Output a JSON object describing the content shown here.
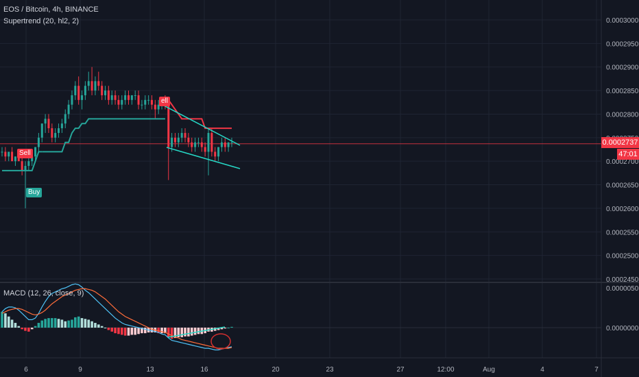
{
  "legend": {
    "symbol": "EOS / Bitcoin, 4h, BINANCE",
    "supertrend": "Supertrend (20, hl2, 2)",
    "macd": "MACD (12, 26, close, 9)"
  },
  "price_axis": {
    "ticks": [
      "0.0003000",
      "0.0002950",
      "0.0002900",
      "0.0002850",
      "0.0002800",
      "0.0002750",
      "0.0002700",
      "0.0002650",
      "0.0002600",
      "0.0002550",
      "0.0002500",
      "0.0002450"
    ],
    "current_price": "0.0002737",
    "countdown": "47:01"
  },
  "macd_axis": {
    "ticks": [
      "0.0000050",
      "0.0000000"
    ]
  },
  "time_axis": {
    "ticks": [
      "6",
      "9",
      "13",
      "16",
      "20",
      "23",
      "27",
      "12:00",
      "Aug",
      "4",
      "7"
    ]
  },
  "signals": {
    "sell_1": "Sell",
    "buy_1": "Buy",
    "sell_2": "ell"
  },
  "colors": {
    "background": "#131722",
    "up": "#26a69a",
    "down": "#f23645",
    "macd_line": "#4fc3f7",
    "signal_line": "#ff6d3a",
    "trendline": "#26d9c7"
  },
  "chart_data": {
    "type": "candlestick",
    "symbol": "EOS / Bitcoin",
    "interval": "4h",
    "exchange": "BINANCE",
    "y_range": [
      0.000244,
      0.000303
    ],
    "last_price": 0.0002737,
    "candles": [
      [
        0.000272,
        0.000273,
        0.000271,
        0.000272
      ],
      [
        0.000272,
        0.000273,
        0.00027,
        0.000271
      ],
      [
        0.000271,
        0.000272,
        0.00027,
        0.000272
      ],
      [
        0.000272,
        0.000273,
        0.00027,
        0.00027
      ],
      [
        0.00027,
        0.000271,
        0.000269,
        0.000271
      ],
      [
        0.000271,
        0.000272,
        0.00027,
        0.00027
      ],
      [
        0.00027,
        0.000271,
        0.000267,
        0.000268
      ],
      [
        0.000268,
        0.00027,
        0.00026,
        0.000269
      ],
      [
        0.000269,
        0.000271,
        0.000268,
        0.00027
      ],
      [
        0.00027,
        0.000272,
        0.000269,
        0.000271
      ],
      [
        0.000271,
        0.000273,
        0.00027,
        0.000273
      ],
      [
        0.000273,
        0.000276,
        0.000272,
        0.000275
      ],
      [
        0.000275,
        0.000278,
        0.000274,
        0.000278
      ],
      [
        0.000278,
        0.00028,
        0.000276,
        0.000279
      ],
      [
        0.000279,
        0.00028,
        0.000276,
        0.000277
      ],
      [
        0.000277,
        0.000278,
        0.000274,
        0.000275
      ],
      [
        0.000275,
        0.000277,
        0.000274,
        0.000276
      ],
      [
        0.000276,
        0.000278,
        0.000275,
        0.000277
      ],
      [
        0.000277,
        0.000279,
        0.000276,
        0.000278
      ],
      [
        0.000278,
        0.000281,
        0.000277,
        0.00028
      ],
      [
        0.00028,
        0.000283,
        0.000279,
        0.000282
      ],
      [
        0.000282,
        0.000285,
        0.000281,
        0.000284
      ],
      [
        0.000284,
        0.000287,
        0.000283,
        0.000286
      ],
      [
        0.000286,
        0.000288,
        0.000282,
        0.000283
      ],
      [
        0.000283,
        0.000285,
        0.000281,
        0.000284
      ],
      [
        0.000284,
        0.000287,
        0.000283,
        0.000286
      ],
      [
        0.000286,
        0.000289,
        0.000285,
        0.000287
      ],
      [
        0.000287,
        0.00029,
        0.000284,
        0.000285
      ],
      [
        0.000285,
        0.000288,
        0.000284,
        0.000287
      ],
      [
        0.000287,
        0.000289,
        0.000285,
        0.000286
      ],
      [
        0.000286,
        0.000287,
        0.000283,
        0.000284
      ],
      [
        0.000284,
        0.000286,
        0.000283,
        0.000285
      ],
      [
        0.000285,
        0.000286,
        0.000282,
        0.000283
      ],
      [
        0.000283,
        0.000285,
        0.000282,
        0.000284
      ],
      [
        0.000284,
        0.000285,
        0.000282,
        0.000283
      ],
      [
        0.000283,
        0.000284,
        0.000281,
        0.000282
      ],
      [
        0.000282,
        0.000284,
        0.000281,
        0.000283
      ],
      [
        0.000283,
        0.000285,
        0.000282,
        0.000284
      ],
      [
        0.000284,
        0.000285,
        0.000282,
        0.000283
      ],
      [
        0.000283,
        0.000284,
        0.000282,
        0.000284
      ],
      [
        0.000284,
        0.000285,
        0.000283,
        0.000284
      ],
      [
        0.000284,
        0.000285,
        0.000281,
        0.000282
      ],
      [
        0.000282,
        0.000283,
        0.000281,
        0.000282
      ],
      [
        0.000282,
        0.000284,
        0.000281,
        0.000283
      ],
      [
        0.000283,
        0.000284,
        0.000282,
        0.000283
      ],
      [
        0.000283,
        0.000284,
        0.000281,
        0.000282
      ],
      [
        0.000282,
        0.000283,
        0.000279,
        0.000281
      ],
      [
        0.000281,
        0.000283,
        0.00028,
        0.000282
      ],
      [
        0.000282,
        0.000283,
        0.000281,
        0.000283
      ],
      [
        0.000283,
        0.000284,
        0.000281,
        0.000282
      ],
      [
        0.000282,
        0.000283,
        0.000266,
        0.000273
      ],
      [
        0.000273,
        0.000276,
        0.000272,
        0.000275
      ],
      [
        0.000275,
        0.000276,
        0.000273,
        0.000274
      ],
      [
        0.000274,
        0.000276,
        0.000273,
        0.000275
      ],
      [
        0.000275,
        0.000277,
        0.000274,
        0.000276
      ],
      [
        0.000276,
        0.000277,
        0.000274,
        0.000275
      ],
      [
        0.000275,
        0.000276,
        0.000273,
        0.000274
      ],
      [
        0.000274,
        0.000275,
        0.000272,
        0.000273
      ],
      [
        0.000273,
        0.000275,
        0.000272,
        0.000274
      ],
      [
        0.000274,
        0.000275,
        0.000273,
        0.000274
      ],
      [
        0.000274,
        0.000275,
        0.000272,
        0.000273
      ],
      [
        0.000273,
        0.000274,
        0.000271,
        0.000272
      ],
      [
        0.000272,
        0.000277,
        0.000267,
        0.000276
      ],
      [
        0.000276,
        0.000277,
        0.000271,
        0.000272
      ],
      [
        0.000272,
        0.000273,
        0.00027,
        0.000271
      ],
      [
        0.000271,
        0.000273,
        0.00027,
        0.000273
      ],
      [
        0.000273,
        0.000275,
        0.000272,
        0.000274
      ],
      [
        0.000274,
        0.000275,
        0.000272,
        0.000273
      ],
      [
        0.000273,
        0.000274,
        0.000272,
        0.000274
      ],
      [
        0.000274,
        0.000275,
        0.000273,
        0.000274
      ]
    ],
    "supertrend": {
      "up_segments": [
        {
          "from": 0,
          "to": 12,
          "values": [
            0.000268,
            0.000268,
            0.000268,
            0.000268,
            0.000268,
            0.000268,
            0.000268,
            0.000268,
            0.000268,
            0.000268,
            0.00027,
            0.000272,
            0.000272
          ]
        },
        {
          "from": 12,
          "to": 49,
          "values": [
            0.000272,
            0.000272,
            0.000272,
            0.000272,
            0.000272,
            0.000272,
            0.000272,
            0.000274,
            0.000274,
            0.000276,
            0.000277,
            0.000277,
            0.000278,
            0.000278,
            0.000279,
            0.000279,
            0.000279,
            0.000279,
            0.000279,
            0.000279,
            0.000279,
            0.000279,
            0.000279,
            0.000279,
            0.000279,
            0.000279,
            0.000279,
            0.000279,
            0.000279,
            0.000279,
            0.000279,
            0.000279,
            0.000279,
            0.000279,
            0.000279,
            0.000279,
            0.000279,
            0.000279
          ]
        }
      ],
      "down_segments": [
        {
          "from": 50,
          "to": 69,
          "values": [
            0.000283,
            0.000282,
            0.000281,
            0.00028,
            0.000279,
            0.000279,
            0.000279,
            0.000279,
            0.000279,
            0.000279,
            0.000279,
            0.000277,
            0.000277,
            0.000277,
            0.000277,
            0.000277,
            0.000277,
            0.000277,
            0.000277,
            0.000277
          ]
        }
      ]
    },
    "macd": {
      "y_range": [
        -4e-06,
        6.2e-06
      ],
      "histogram": [
        2e-06,
        1.8e-06,
        1.4e-06,
        1e-06,
        6e-07,
        2e-07,
        -2e-07,
        -4e-07,
        -5e-07,
        -2e-07,
        2e-07,
        6e-07,
        9e-07,
        1.1e-06,
        1.2e-06,
        1.2e-06,
        1.2e-06,
        1.1e-06,
        1e-06,
        8e-07,
        9e-07,
        1e-06,
        1.3e-06,
        1.4e-06,
        1.2e-06,
        1.1e-06,
        1e-06,
        8e-07,
        6e-07,
        4e-07,
        2e-07,
        0.0,
        -3e-07,
        -5e-07,
        -7e-07,
        -8e-07,
        -9e-07,
        -1e-06,
        -1e-06,
        -9e-07,
        -9e-07,
        -8e-07,
        -7e-07,
        -7e-07,
        -6e-07,
        -6e-07,
        -6e-07,
        -7e-07,
        -7e-07,
        -7e-07,
        -1.2e-06,
        -1.4e-06,
        -1.3e-06,
        -1.2e-06,
        -1.2e-06,
        -1.1e-06,
        -1.1e-06,
        -1e-06,
        -9e-07,
        -8e-07,
        -8e-07,
        -7e-07,
        -5e-07,
        -5e-07,
        -4e-07,
        -3e-07,
        -2e-07,
        -1e-07,
        0.0,
        1e-07
      ],
      "macd_line": [
        2e-06,
        2.4e-06,
        2.6e-06,
        2.6e-06,
        2.5e-06,
        2.2e-06,
        1.8e-06,
        1.4e-06,
        1e-06,
        1e-06,
        1.2e-06,
        1.8e-06,
        2.6e-06,
        3.3e-06,
        3.9e-06,
        4.3e-06,
        4.5e-06,
        4.7e-06,
        4.9e-06,
        5e-06,
        5.2e-06,
        5.4e-06,
        5.5e-06,
        5.4e-06,
        5.1e-06,
        4.7e-06,
        4.4e-06,
        4e-06,
        3.6e-06,
        3.2e-06,
        2.8e-06,
        2.4e-06,
        2e-06,
        1.6e-06,
        1.2e-06,
        9e-07,
        6e-07,
        4e-07,
        3e-07,
        2e-07,
        1e-07,
        0.0,
        -1e-07,
        -2e-07,
        -3e-07,
        -4e-07,
        -5e-07,
        -6e-07,
        -8e-07,
        -9e-07,
        -1.3e-06,
        -1.6e-06,
        -1.7e-06,
        -1.8e-06,
        -1.9e-06,
        -2e-06,
        -2.1e-06,
        -2.2e-06,
        -2.3e-06,
        -2.4e-06,
        -2.5e-06,
        -2.6e-06,
        -2.6e-06,
        -2.7e-06,
        -2.8e-06,
        -2.8e-06,
        -2.7e-06,
        -2.6e-06,
        -2.5e-06,
        -2.4e-06
      ],
      "signal_line": [
        1.8e-06,
        2e-06,
        2.2e-06,
        2.3e-06,
        2.4e-06,
        2.4e-06,
        2.3e-06,
        2.1e-06,
        1.9e-06,
        1.7e-06,
        1.6e-06,
        1.7e-06,
        1.9e-06,
        2.2e-06,
        2.6e-06,
        3e-06,
        3.3e-06,
        3.6e-06,
        3.9e-06,
        4.1e-06,
        4.3e-06,
        4.5e-06,
        4.7e-06,
        4.8e-06,
        4.9e-06,
        4.9e-06,
        4.8e-06,
        4.7e-06,
        4.5e-06,
        4.2e-06,
        3.9e-06,
        3.6e-06,
        3.2e-06,
        2.8e-06,
        2.4e-06,
        2e-06,
        1.7e-06,
        1.4e-06,
        1.2e-06,
        1e-06,
        8e-07,
        6e-07,
        4e-07,
        2e-07,
        0.0,
        -2e-07,
        -3e-07,
        -4e-07,
        -5e-07,
        -6e-07,
        -8e-07,
        -1e-06,
        -1.2e-06,
        -1.3e-06,
        -1.5e-06,
        -1.6e-06,
        -1.7e-06,
        -1.8e-06,
        -1.9e-06,
        -2e-06,
        -2.1e-06,
        -2.2e-06,
        -2.3e-06,
        -2.4e-06,
        -2.5e-06,
        -2.6e-06,
        -2.6e-06,
        -2.6e-06,
        -2.6e-06,
        -2.5e-06
      ]
    }
  }
}
